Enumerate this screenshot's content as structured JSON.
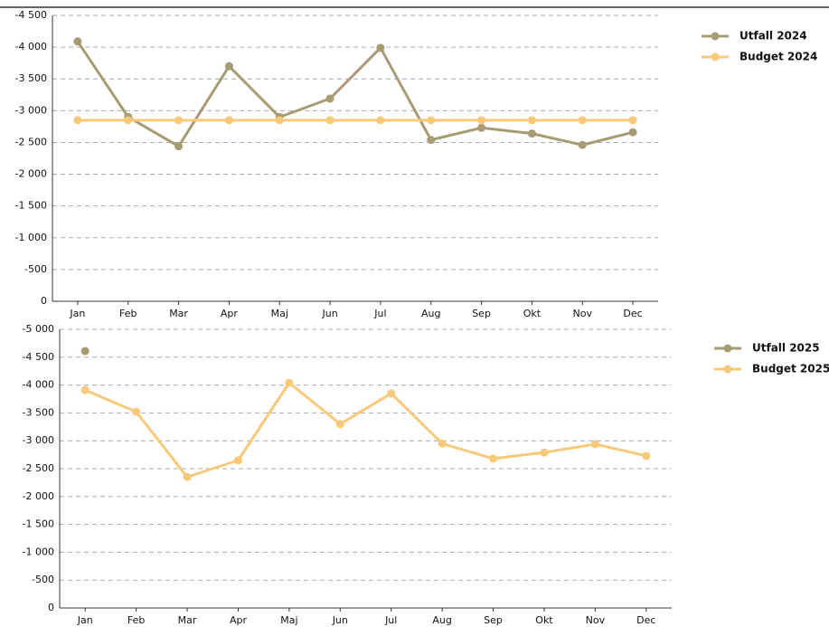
{
  "chart_data": [
    {
      "type": "line",
      "categories": [
        "Jan",
        "Feb",
        "Mar",
        "Apr",
        "Maj",
        "Jun",
        "Jul",
        "Aug",
        "Sep",
        "Okt",
        "Nov",
        "Dec"
      ],
      "series": [
        {
          "name": "Utfall 2024",
          "color": "#a89a73",
          "values": [
            -4090,
            -2900,
            -2440,
            -3700,
            -2900,
            -3190,
            -3990,
            -2540,
            -2730,
            -2640,
            -2460,
            -2660
          ]
        },
        {
          "name": "Budget 2024",
          "color": "#f9c97a",
          "values": [
            -2850,
            -2850,
            -2850,
            -2850,
            -2850,
            -2850,
            -2850,
            -2850,
            -2850,
            -2850,
            -2850,
            -2850
          ]
        }
      ],
      "ylim": [
        0,
        -4500
      ],
      "yticks": [
        0,
        -500,
        {
          "value": -1000,
          "label": "-1 000"
        },
        {
          "value": -1500,
          "label": "-1 500"
        },
        {
          "value": -2000,
          "label": "-2 000"
        },
        {
          "value": -2500,
          "label": "-2 500"
        },
        {
          "value": -3000,
          "label": "-3 000"
        },
        {
          "value": -3500,
          "label": "-3 500"
        },
        {
          "value": -4000,
          "label": "-4 000"
        },
        {
          "value": -4500,
          "label": "-4 500"
        }
      ],
      "grid": true,
      "legend": "top-right"
    },
    {
      "type": "line",
      "categories": [
        "Jan",
        "Feb",
        "Mar",
        "Apr",
        "Maj",
        "Jun",
        "Jul",
        "Aug",
        "Sep",
        "Okt",
        "Nov",
        "Dec"
      ],
      "series": [
        {
          "name": "Utfall 2025",
          "color": "#a89a73",
          "values": [
            -4610,
            null,
            null,
            null,
            null,
            null,
            null,
            null,
            null,
            null,
            null,
            null
          ]
        },
        {
          "name": "Budget 2025",
          "color": "#f9c97a",
          "values": [
            -3910,
            -3520,
            -2350,
            -2650,
            -4040,
            -3300,
            -3850,
            -2950,
            -2680,
            -2790,
            -2940,
            -2730
          ]
        }
      ],
      "ylim": [
        0,
        -5000
      ],
      "yticks": [
        0,
        -500,
        {
          "value": -1000,
          "label": "-1 000"
        },
        {
          "value": -1500,
          "label": "-1 500"
        },
        {
          "value": -2000,
          "label": "-2 000"
        },
        {
          "value": -2500,
          "label": "-2 500"
        },
        {
          "value": -3000,
          "label": "-3 000"
        },
        {
          "value": -3500,
          "label": "-3 500"
        },
        {
          "value": -4000,
          "label": "-4 000"
        },
        {
          "value": -4500,
          "label": "-4 500"
        },
        {
          "value": -5000,
          "label": "-5 000"
        }
      ],
      "grid": true,
      "legend": "top-right"
    }
  ]
}
